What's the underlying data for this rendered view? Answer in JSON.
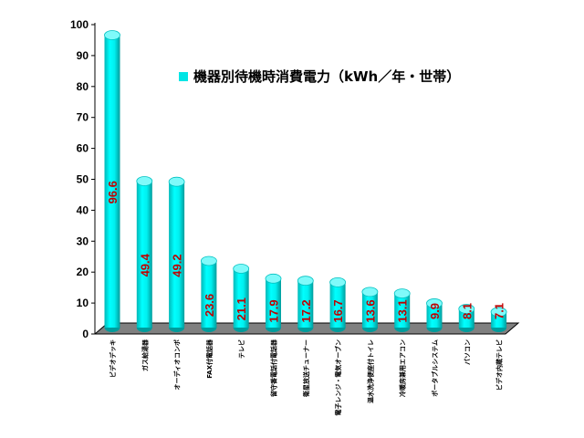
{
  "chart_data": {
    "type": "bar",
    "title": "",
    "xlabel": "",
    "ylabel": "",
    "ylim": [
      0,
      100
    ],
    "yticks": [
      0,
      10,
      20,
      30,
      40,
      50,
      60,
      70,
      80,
      90,
      100
    ],
    "grid": false,
    "legend_position": "top-right",
    "bar_color": "#00e5e5",
    "label_color": "#c00000",
    "categories": [
      "ビデオデッキ",
      "ガス給湯器",
      "オーディオコンポ",
      "FAX付電話器",
      "テレビ",
      "留守番電話付電話器",
      "衛星放送チューナー",
      "電子レンジ・電気オーブン",
      "温水洗浄便座付トイレ",
      "冷暖房兼用エアコン",
      "ポータブルシステム",
      "パソコン",
      "ビデオ内蔵テレビ"
    ],
    "series": [
      {
        "name": "機器別待機時消費電力（kWh／年・世帯）",
        "values": [
          96.6,
          49.4,
          49.2,
          23.6,
          21.1,
          17.9,
          17.2,
          16.7,
          13.6,
          13.1,
          9.9,
          8.1,
          7.1
        ],
        "labels": [
          "96.6",
          "49.4",
          "49.2",
          "23.6",
          "21.1",
          "17.9",
          "17.2",
          "16.7",
          "13.6",
          "13.1",
          "9.9",
          "8.1",
          "7.1"
        ]
      }
    ]
  }
}
